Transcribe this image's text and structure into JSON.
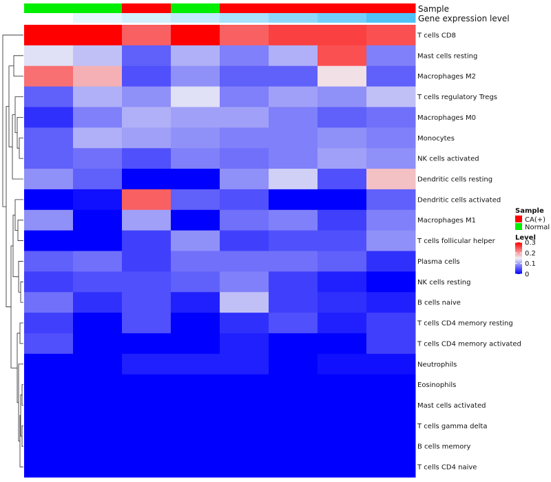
{
  "chart_data": {
    "type": "heatmap",
    "title": "",
    "rows": [
      "T cells CD8",
      "Mast cells resting",
      "Macrophages M2",
      "T cells regulatory  Tregs",
      "Macrophages M0",
      "Monocytes",
      "NK cells activated",
      "Dendritic cells resting",
      "Dendritic cells activated",
      "Macrophages M1",
      "T cells follicular helper",
      "Plasma cells",
      "NK cells resting",
      "B cells naive",
      "T cells CD4 memory resting",
      "T cells CD4 memory activated",
      "Neutrophils",
      "Eosinophils",
      "Mast cells activated",
      "T cells gamma delta",
      "B cells memory",
      "T cells CD4 naive"
    ],
    "column_annotations": {
      "sample_label": "Sample",
      "gene_label": "Gene expression level",
      "sample": [
        "Normal",
        "Normal",
        "CA(+)",
        "Normal",
        "CA(+)",
        "CA(+)",
        "CA(+)",
        "CA(+)"
      ],
      "gene_level": [
        0.0,
        0.15,
        0.25,
        0.35,
        0.5,
        0.65,
        0.8,
        1.0
      ]
    },
    "values": [
      [
        0.3,
        0.3,
        0.24,
        0.3,
        0.24,
        0.26,
        0.26,
        0.25
      ],
      [
        0.14,
        0.12,
        0.06,
        0.11,
        0.08,
        0.11,
        0.25,
        0.08
      ],
      [
        0.23,
        0.19,
        0.05,
        0.09,
        0.06,
        0.06,
        0.16,
        0.06
      ],
      [
        0.06,
        0.11,
        0.09,
        0.14,
        0.08,
        0.1,
        0.09,
        0.12
      ],
      [
        0.03,
        0.08,
        0.11,
        0.1,
        0.1,
        0.08,
        0.06,
        0.07
      ],
      [
        0.06,
        0.11,
        0.1,
        0.09,
        0.08,
        0.08,
        0.09,
        0.08
      ],
      [
        0.06,
        0.07,
        0.05,
        0.08,
        0.07,
        0.08,
        0.1,
        0.09
      ],
      [
        0.09,
        0.06,
        0.0,
        0.0,
        0.09,
        0.13,
        0.05,
        0.18
      ],
      [
        0.0,
        0.01,
        0.24,
        0.06,
        0.05,
        0.0,
        0.0,
        0.06
      ],
      [
        0.09,
        0.0,
        0.1,
        0.0,
        0.07,
        0.08,
        0.04,
        0.08
      ],
      [
        0.0,
        0.0,
        0.04,
        0.09,
        0.04,
        0.05,
        0.05,
        0.09
      ],
      [
        0.06,
        0.07,
        0.04,
        0.07,
        0.07,
        0.07,
        0.06,
        0.03
      ],
      [
        0.04,
        0.05,
        0.05,
        0.06,
        0.08,
        0.04,
        0.02,
        0.0
      ],
      [
        0.07,
        0.03,
        0.05,
        0.02,
        0.12,
        0.04,
        0.03,
        0.02
      ],
      [
        0.04,
        0.0,
        0.05,
        0.0,
        0.03,
        0.05,
        0.02,
        0.04
      ],
      [
        0.05,
        0.0,
        0.0,
        0.0,
        0.02,
        0.0,
        0.0,
        0.04
      ],
      [
        0.0,
        0.0,
        0.02,
        0.02,
        0.02,
        0.0,
        0.01,
        0.01
      ],
      [
        0.0,
        0.0,
        0.0,
        0.0,
        0.0,
        0.0,
        0.0,
        0.0
      ],
      [
        0.0,
        0.0,
        0.0,
        0.0,
        0.0,
        0.0,
        0.0,
        0.0
      ],
      [
        0.0,
        0.0,
        0.0,
        0.0,
        0.0,
        0.0,
        0.0,
        0.0
      ],
      [
        0.0,
        0.0,
        0.0,
        0.0,
        0.0,
        0.0,
        0.0,
        0.0
      ],
      [
        0.0,
        0.0,
        0.0,
        0.0,
        0.0,
        0.0,
        0.0,
        0.0
      ]
    ],
    "color_scale": {
      "low": "#0000ff",
      "mid": "#f0f0f5",
      "high": "#ff0000",
      "min": 0,
      "mid_value": 0.15,
      "max": 0.3
    },
    "legend": {
      "sample_title": "Sample",
      "sample_entries": [
        {
          "label": "CA(+)",
          "color": "#ff0000"
        },
        {
          "label": "Normal",
          "color": "#00ee00"
        }
      ],
      "level_title": "Level",
      "level_ticks": [
        "0.3",
        "0.2",
        "0.1",
        "0"
      ],
      "level_tick_values": [
        0.3,
        0.2,
        0.1,
        0
      ]
    },
    "gene_level_colors": {
      "low": "#ffffff",
      "high": "#4fc3f7"
    },
    "dendrogram_color": "#222222"
  }
}
